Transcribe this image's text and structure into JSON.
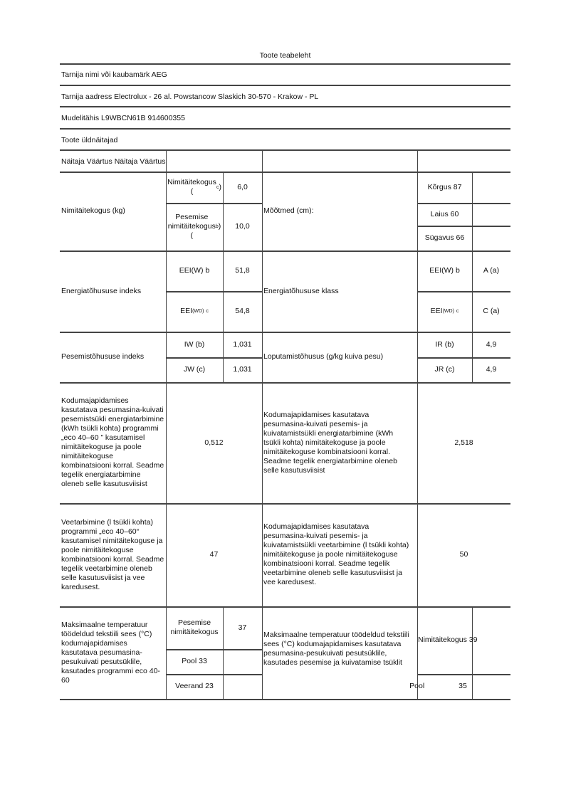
{
  "title": "Toote teabeleht",
  "supplier": "Tarnija nimi või kaubamärk AEG",
  "address": "Tarnija aadress Electrolux - 26 al. Powstancow Slaskich 30-570 - Krakow - PL",
  "model": "Mudelitähis L9WBCN61B 914600355",
  "general": "Toote üldnäitajad",
  "header": "Näitaja Väärtus Näitaja Väärtus",
  "capacity": {
    "label": "Nimitäitekogus (kg)",
    "sub1": "Nimitäitekogus (c)",
    "val1": "6,0",
    "sub2": "Pesemise nimitäitekogus (b)",
    "val2": "10,0"
  },
  "dimensions": {
    "label": "Mõõtmed (cm):",
    "height": "Kõrgus 87",
    "width": "Laius 60",
    "depth": "Sügavus 66"
  },
  "eei": {
    "label": "Energiatõhususe indeks",
    "sub1": "EEI(W) b",
    "val1": "51,8",
    "sub2": "EEI(WD) c",
    "val2": "54,8"
  },
  "eclass": {
    "label": "Energiatõhususe klass",
    "sub1": "EEI(W) b",
    "val1": "A (a)",
    "sub2": "EEI(WD) c",
    "val2": "C (a)"
  },
  "wash": {
    "label": "Pesemistõhususe indeks",
    "sub1": "IW (b)",
    "val1": "1,031",
    "sub2": "JW (c)",
    "val2": "1,031"
  },
  "rinse": {
    "label": "Loputamistõhusus (g/kg kuiva pesu)",
    "sub1": "IR (b)",
    "val1": "4,9",
    "sub2": "JR (c)",
    "val2": "4,9"
  },
  "energy": {
    "label1": "Kodumajapidamises kasutatava pesumasina-kuivati pesemistsükli energiatarbimine (kWh tsükli kohta) programmi „eco 40–60 ” kasutamisel nimitäitekoguse ja poole nimitäitekoguse kombinatsiooni korral. Seadme tegelik energiatarbimine oleneb selle kasutusviisist",
    "val1": "0,512",
    "label2": "Kodumajapidamises kasutatava pesumasina-kuivati pesemis- ja kuivatamistsükli energiatarbimine (kWh tsükli kohta) nimitäitekoguse ja poole nimitäitekoguse kombinatsiooni korral. Seadme tegelik energiatarbimine oleneb selle kasutusviisist",
    "val2": "2,518"
  },
  "water": {
    "label1": "Veetarbimine (l tsükli kohta) programmi „eco 40–60“ kasutamisel nimitäitekoguse ja poole nimitäitekoguse kombinatsiooni korral. Seadme tegelik veetarbimine oleneb selle kasutusviisist ja vee karedusest.",
    "val1": "47",
    "label2": "Kodumajapidamises kasutatava pesumasina-kuivati pesemis- ja kuivatamistsükli veetarbimine (l tsükli kohta) nimitäitekoguse ja poole nimitäitekoguse kombinatsiooni korral. Seadme tegelik veetarbimine oleneb selle kasutusviisist ja vee karedusest.",
    "val2": "50"
  },
  "temp": {
    "label1": "Maksimaalne temperatuur töödeldud tekstiili sees (°C) kodumajapidamises kasutatava pesumasina-pesukuivati pesutsüklile, kasutades programmi eco 40-60",
    "sub1": "Pesemise nimitäitekogus",
    "val1": "37",
    "sub2": "Pool 33",
    "sub3": "Veerand 23",
    "label2": "Maksimaalne temperatuur töödeldud tekstiili sees (°C) kodumajapidamises kasutatava pesumasina-pesukuivati pesutsüklile, kasutades pesemise ja kuivatamise tsüklit",
    "rsub1": "Nimitäitekogus 39",
    "rsub2a": "Po",
    "rsub2b": "ol",
    "rval2": "35"
  }
}
